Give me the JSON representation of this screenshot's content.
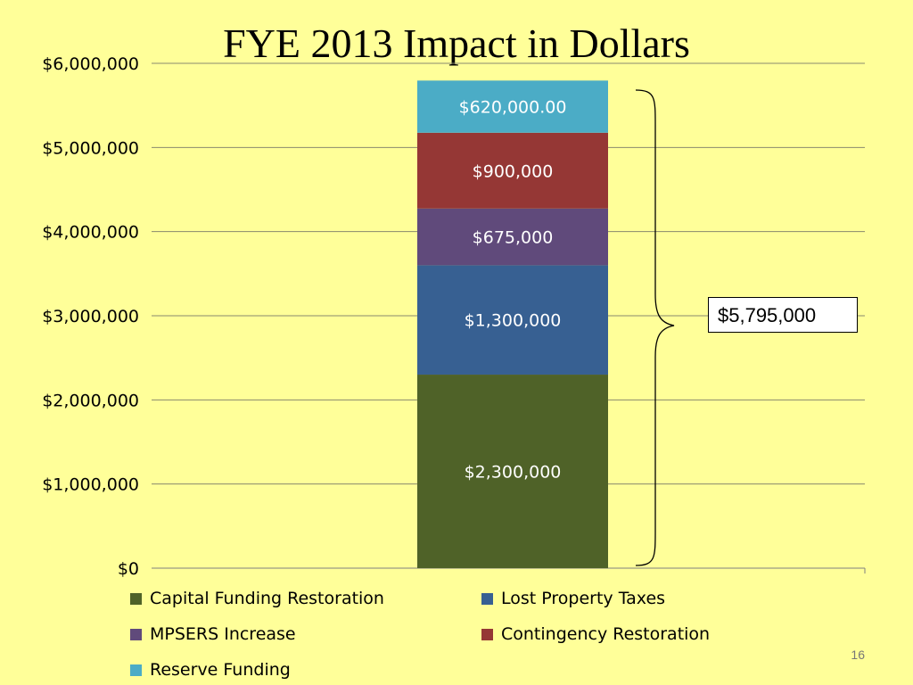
{
  "slide": {
    "title": "FYE 2013 Impact in Dollars",
    "total_callout": "$5,795,000",
    "page_number": "16"
  },
  "chart_data": {
    "type": "bar",
    "stacked": true,
    "categories": [
      ""
    ],
    "y_tick_labels": [
      "$0",
      "$1,000,000",
      "$2,000,000",
      "$3,000,000",
      "$4,000,000",
      "$5,000,000",
      "$6,000,000"
    ],
    "ylim": [
      0,
      6000000
    ],
    "grid": true,
    "legend_position": "bottom",
    "series": [
      {
        "name": "Capital Funding Restoration",
        "values": [
          2300000
        ],
        "label": "$2,300,000",
        "color": "#4F6228"
      },
      {
        "name": "Lost Property Taxes",
        "values": [
          1300000
        ],
        "label": "$1,300,000",
        "color": "#376092"
      },
      {
        "name": "MPSERS Increase",
        "values": [
          675000
        ],
        "label": "$675,000",
        "color": "#604A7B"
      },
      {
        "name": "Contingency Restoration",
        "values": [
          900000
        ],
        "label": "$900,000",
        "color": "#953735"
      },
      {
        "name": "Reserve Funding",
        "values": [
          620000
        ],
        "label": "$620,000.00",
        "color": "#4BACC6"
      }
    ]
  }
}
